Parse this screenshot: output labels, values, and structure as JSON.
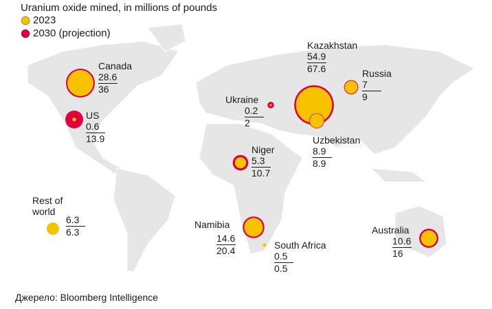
{
  "chart_data": {
    "type": "bubble-map",
    "title": "Uranium oxide mined, in millions of pounds",
    "categories": [
      "Canada",
      "US",
      "Ukraine",
      "Kazakhstan",
      "Russia",
      "Uzbekistan",
      "Niger",
      "Namibia",
      "South Africa",
      "Australia",
      "Rest of world"
    ],
    "series": [
      {
        "name": "2023",
        "color": "#f7c300",
        "values": [
          28.6,
          0.6,
          0.2,
          54.9,
          7,
          8.9,
          5.3,
          14.6,
          0.5,
          10.6,
          6.3
        ]
      },
      {
        "name": "2030 (projection)",
        "color": "#e0003c",
        "values": [
          36,
          13.9,
          2,
          67.6,
          9,
          8.9,
          10.7,
          20.4,
          0.5,
          16,
          6.3
        ]
      }
    ],
    "source": "Джерело: Bloomberg Intelligence"
  }
}
